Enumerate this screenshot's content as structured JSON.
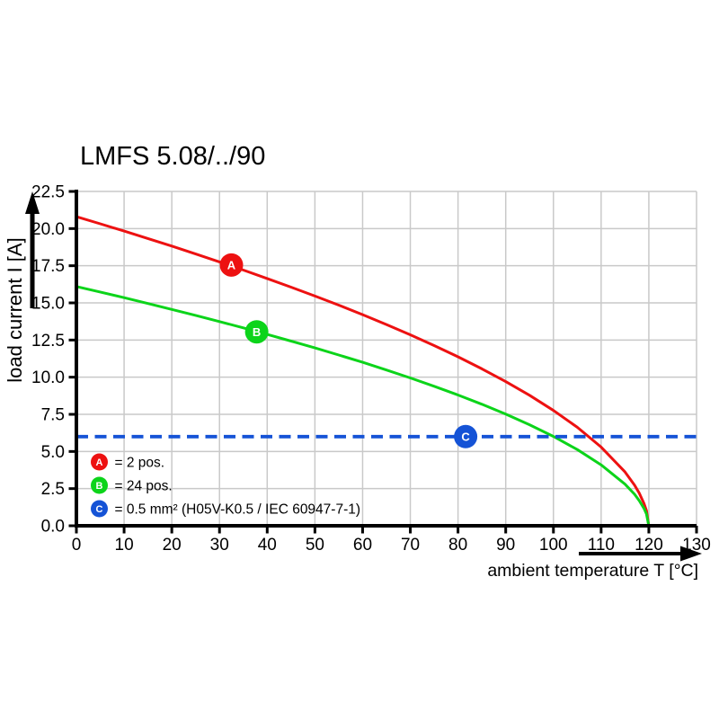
{
  "title": "LMFS 5.08/../90",
  "chart_data": {
    "type": "line",
    "title": "LMFS 5.08/../90",
    "xlabel": "ambient temperature T [°C]",
    "ylabel": "load current I [A]",
    "xlim": [
      0,
      130
    ],
    "ylim": [
      0,
      22.5
    ],
    "x_tick_step": 10,
    "y_tick_step": 2.5,
    "grid": true,
    "x_ticks": [
      "0",
      "10",
      "20",
      "30",
      "40",
      "50",
      "60",
      "70",
      "80",
      "90",
      "100",
      "110",
      "120",
      "130"
    ],
    "y_ticks": [
      "0.0",
      "2.5",
      "5.0",
      "7.5",
      "10.0",
      "12.5",
      "15.0",
      "17.5",
      "20.0",
      "22.5"
    ],
    "series": [
      {
        "name": "A",
        "label": "2 pos.",
        "color": "#ed1111",
        "style": "solid",
        "x": [
          0,
          5,
          10,
          15,
          20,
          25,
          30,
          35,
          40,
          45,
          50,
          55,
          60,
          65,
          70,
          75,
          80,
          85,
          90,
          95,
          100,
          105,
          110,
          115,
          117,
          118,
          119,
          119.5,
          120
        ],
        "y": [
          20.8,
          20.32,
          19.83,
          19.33,
          18.82,
          18.29,
          17.76,
          17.21,
          16.64,
          16.06,
          15.46,
          14.85,
          14.21,
          13.54,
          12.85,
          12.13,
          11.37,
          10.56,
          9.7,
          8.78,
          7.76,
          6.63,
          5.3,
          3.62,
          2.74,
          2.19,
          1.49,
          1.02,
          0
        ]
      },
      {
        "name": "B",
        "label": "24 pos.",
        "color": "#0cd41a",
        "style": "solid",
        "x": [
          0,
          5,
          10,
          15,
          20,
          25,
          30,
          35,
          40,
          45,
          50,
          55,
          60,
          65,
          70,
          75,
          80,
          85,
          90,
          95,
          100,
          105,
          110,
          115,
          117,
          118,
          119,
          119.5,
          120
        ],
        "y": [
          16.1,
          15.73,
          15.35,
          14.96,
          14.56,
          14.16,
          13.74,
          13.32,
          12.88,
          12.43,
          11.97,
          11.49,
          11.0,
          10.48,
          9.95,
          9.39,
          8.8,
          8.18,
          7.51,
          6.8,
          6.01,
          5.13,
          4.1,
          2.8,
          2.12,
          1.69,
          1.16,
          0.79,
          0
        ]
      },
      {
        "name": "C",
        "label": "0.5 mm² (H05V-K0.5 / IEC 60947-7-1)",
        "color": "#1553d6",
        "style": "dashed",
        "x": [
          0,
          130
        ],
        "y": [
          6,
          6
        ]
      }
    ],
    "markers": [
      {
        "letter": "A",
        "x": 32.5,
        "y": 17.55,
        "color": "#ed1111"
      },
      {
        "letter": "B",
        "x": 37.8,
        "y": 13.05,
        "color": "#0cd41a"
      },
      {
        "letter": "C",
        "x": 81.6,
        "y": 6.0,
        "color": "#1553d6"
      }
    ],
    "legend_position": "bottom-left-inside",
    "legend": [
      {
        "letter": "A",
        "color": "#ed1111",
        "text": "= 2 pos."
      },
      {
        "letter": "B",
        "color": "#0cd41a",
        "text": "= 24 pos."
      },
      {
        "letter": "C",
        "color": "#1553d6",
        "text": "= 0.5 mm² (H05V-K0.5 / IEC 60947-7-1)"
      }
    ]
  },
  "colors": {
    "axis": "#000000",
    "grid": "#c9c9c9",
    "background": "#ffffff",
    "red_curve": "#ed1111",
    "green_curve": "#0cd41a",
    "blue_line": "#1553d6"
  }
}
